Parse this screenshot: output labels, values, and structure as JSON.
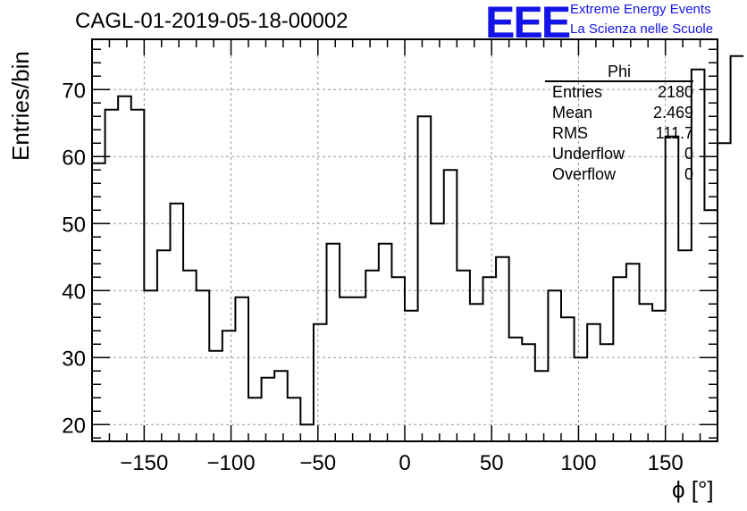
{
  "header": {
    "title": "CAGL-01-2019-05-18-00002",
    "logo_mark": "EEE",
    "logo_line1": "Extreme Energy Events",
    "logo_line2": "La Scienza nelle Scuole",
    "logo_color": "#1414e6"
  },
  "stats": {
    "name": "Phi",
    "rows": [
      {
        "label": "Entries",
        "value": "2180"
      },
      {
        "label": "Mean",
        "value": "2.469"
      },
      {
        "label": "RMS",
        "value": "111.7"
      },
      {
        "label": "Underflow",
        "value": "0"
      },
      {
        "label": "Overflow",
        "value": "0"
      }
    ]
  },
  "chart_data": {
    "type": "bar",
    "style": "step-histogram",
    "title": "CAGL-01-2019-05-18-00002",
    "xlabel": "ϕ [°]",
    "ylabel": "Entries/bin",
    "xlim": [
      -180,
      180
    ],
    "ylim": [
      17.5,
      77.5
    ],
    "bin_width": 7.5,
    "x_ticks": [
      -150,
      -100,
      -50,
      0,
      50,
      100,
      150
    ],
    "x_tick_labels": [
      "−150",
      "−100",
      "−50",
      "0",
      "50",
      "100",
      "150"
    ],
    "y_ticks": [
      20,
      30,
      40,
      50,
      60,
      70
    ],
    "grid": true,
    "bin_edges_start": -180,
    "values": [
      59,
      67,
      69,
      67,
      40,
      46,
      53,
      43,
      40,
      31,
      34,
      39,
      24,
      27,
      28,
      24,
      20,
      35,
      47,
      39,
      39,
      43,
      47,
      42,
      37,
      66,
      50,
      58,
      43,
      38,
      42,
      45,
      33,
      32,
      28,
      40,
      36,
      30,
      35,
      32,
      42,
      44,
      38,
      37,
      63,
      46,
      73,
      52,
      62,
      75
    ]
  }
}
